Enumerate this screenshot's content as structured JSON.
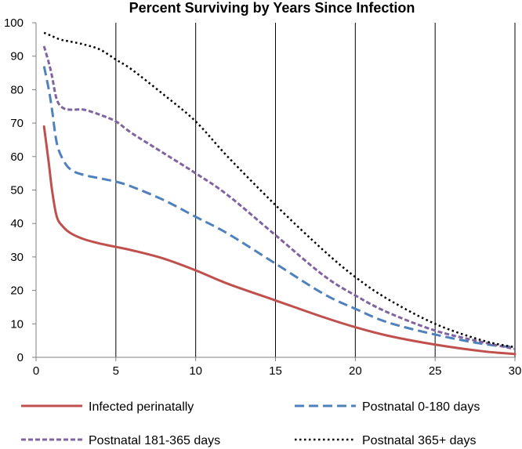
{
  "chart_data": {
    "type": "line",
    "title": "Percent Surviving by Years Since Infection",
    "xlabel": "",
    "ylabel": "",
    "xlim": [
      0,
      30
    ],
    "ylim": [
      0,
      100
    ],
    "xticks": [
      0,
      5,
      10,
      15,
      20,
      25,
      30
    ],
    "yticks": [
      0,
      10,
      20,
      30,
      40,
      50,
      60,
      70,
      80,
      90,
      100
    ],
    "grid": "vertical lines at x ticks",
    "legend_position": "bottom",
    "series": [
      {
        "name": "Infected perinatally",
        "color": "#c0504d",
        "style": "solid",
        "x": [
          0.5,
          0.8,
          1.0,
          1.3,
          1.7,
          2.2,
          3,
          4,
          5,
          6,
          8,
          10,
          12,
          15,
          18,
          20,
          22,
          25,
          28,
          30
        ],
        "y": [
          69,
          58,
          50,
          42,
          39,
          37,
          35.3,
          34,
          33,
          32,
          29.5,
          26,
          22,
          17,
          12,
          9,
          6.5,
          3.8,
          1.8,
          1
        ]
      },
      {
        "name": "Postnatal 0-180 days",
        "color": "#4f81bd",
        "style": "dashed",
        "x": [
          0.5,
          0.8,
          1.0,
          1.3,
          1.7,
          2.2,
          3,
          4,
          5,
          6,
          8,
          10,
          12,
          15,
          18,
          20,
          22,
          25,
          28,
          30
        ],
        "y": [
          87,
          80,
          74,
          64,
          59,
          56,
          54.5,
          53.5,
          52.5,
          51,
          47,
          42,
          37,
          28,
          19,
          14.5,
          10.5,
          6.8,
          4,
          3
        ]
      },
      {
        "name": "Postnatal 181-365 days",
        "color": "#8064a2",
        "style": "short-dash",
        "x": [
          0.5,
          0.8,
          1.0,
          1.3,
          1.7,
          2.2,
          3,
          4,
          5,
          6,
          8,
          10,
          12,
          15,
          18,
          20,
          22,
          25,
          28,
          30
        ],
        "y": [
          93,
          88,
          84,
          77,
          74.5,
          74,
          74,
          72.5,
          70.5,
          67,
          61,
          55,
          48.5,
          36.5,
          24.5,
          18.5,
          13.5,
          8,
          4.5,
          2.5
        ]
      },
      {
        "name": "Postnatal 365+ days",
        "color": "#000000",
        "style": "dotted",
        "x": [
          0.5,
          1,
          1.5,
          2,
          3,
          4,
          5,
          6,
          8,
          10,
          12,
          15,
          18,
          20,
          22,
          25,
          28,
          30
        ],
        "y": [
          97,
          96,
          95,
          94.5,
          93.5,
          92,
          89,
          86,
          78.5,
          70.5,
          60,
          45.5,
          32,
          24,
          17.5,
          10,
          5,
          3
        ]
      }
    ]
  }
}
